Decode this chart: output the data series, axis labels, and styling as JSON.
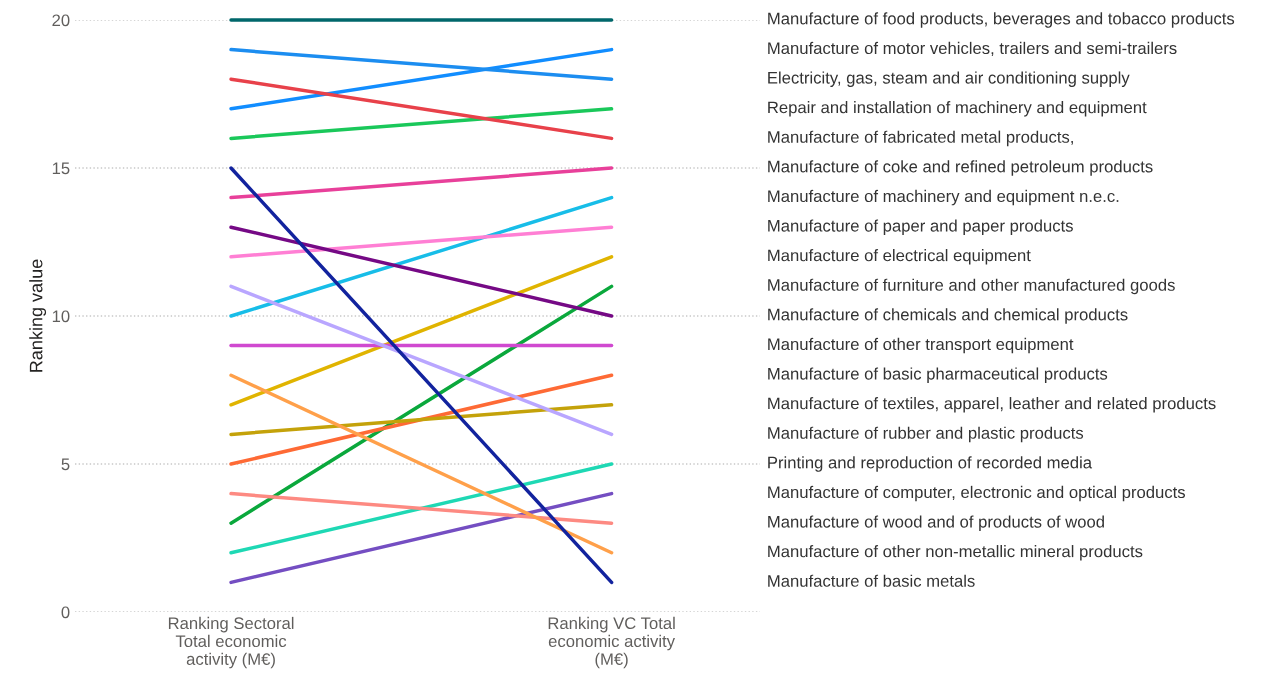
{
  "chart_data": {
    "type": "line",
    "ylabel": "Ranking value",
    "categories": [
      "Ranking Sectoral\nTotal economic\nactivity (M€)",
      "Ranking VC Total\neconomic activity\n(M€)"
    ],
    "ylim": [
      0,
      20
    ],
    "yticks": [
      0,
      5,
      10,
      15,
      20
    ],
    "grid": "y",
    "line_style": "solid",
    "marker": "none",
    "series": [
      {
        "name": "Manufacture of food products, beverages and tobacco products",
        "color": "#00676b",
        "values": [
          20,
          20
        ]
      },
      {
        "name": "Manufacture of motor vehicles, trailers and semi-trailers",
        "color": "#118dff",
        "values": [
          17,
          19
        ]
      },
      {
        "name": "Electricity, gas, steam and air conditioning supply",
        "color": "#1c8df0",
        "values": [
          19,
          18
        ]
      },
      {
        "name": "Repair and installation of machinery and equipment",
        "color": "#1ac85a",
        "values": [
          16,
          17
        ]
      },
      {
        "name": "Manufacture of fabricated metal products,",
        "color": "#e8414a",
        "values": [
          18,
          16
        ]
      },
      {
        "name": "Manufacture of coke and refined petroleum products",
        "color": "#e8409a",
        "values": [
          14,
          15
        ]
      },
      {
        "name": "Manufacture of machinery and equipment n.e.c.",
        "color": "#17bde8",
        "values": [
          10,
          14
        ]
      },
      {
        "name": "Manufacture of paper and paper products",
        "color": "#ff7fd4",
        "values": [
          12,
          13
        ]
      },
      {
        "name": "Manufacture of electrical equipment",
        "color": "#e0b400",
        "values": [
          7,
          12
        ]
      },
      {
        "name": "Manufacture of furniture and other manufactured goods",
        "color": "#0aa83c",
        "values": [
          3,
          11
        ]
      },
      {
        "name": "Manufacture of chemicals and chemical products",
        "color": "#750985",
        "values": [
          13,
          10
        ]
      },
      {
        "name": "Manufacture of other transport equipment",
        "color": "#d049d0",
        "values": [
          9,
          9
        ]
      },
      {
        "name": "Manufacture of basic pharmaceutical products",
        "color": "#fe6a35",
        "values": [
          5,
          8
        ]
      },
      {
        "name": "Manufacture of textiles, apparel, leather and related products",
        "color": "#c4a20a",
        "values": [
          6,
          7
        ]
      },
      {
        "name": "Manufacture of rubber and plastic products",
        "color": "#b9a6ff",
        "values": [
          11,
          6
        ]
      },
      {
        "name": "Printing and reproduction of recorded media",
        "color": "#1ed8b4",
        "values": [
          2,
          5
        ]
      },
      {
        "name": "Manufacture of computer, electronic and optical products",
        "color": "#744ec2",
        "values": [
          1,
          4
        ]
      },
      {
        "name": "Manufacture of wood and of products of wood",
        "color": "#fd8a82",
        "values": [
          4,
          3
        ]
      },
      {
        "name": "Manufacture of other non-metallic mineral products",
        "color": "#ffa04a",
        "values": [
          8,
          2
        ]
      },
      {
        "name": "Manufacture of basic metals",
        "color": "#12239e",
        "values": [
          15,
          1
        ]
      }
    ]
  }
}
